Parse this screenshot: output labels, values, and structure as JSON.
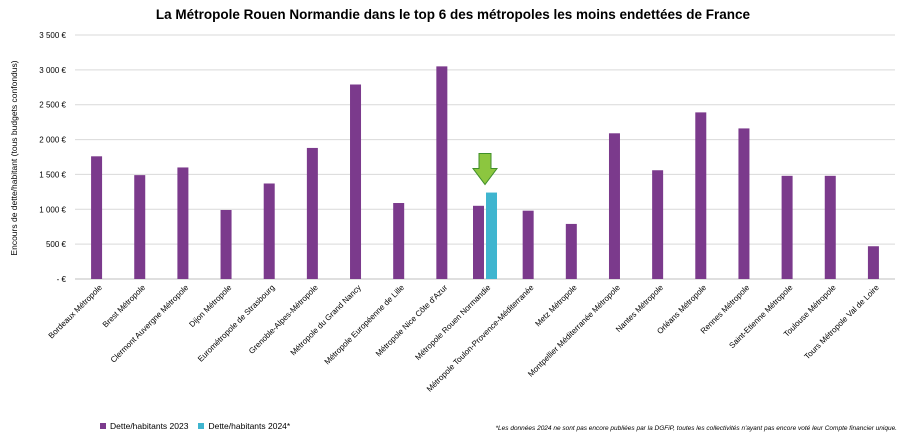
{
  "chart_data": {
    "type": "bar",
    "title": "La Métropole Rouen Normandie dans le top 6 des métropoles les moins endettées de France",
    "ylabel": "Encours de dette/habitant (tous budgets confondus)",
    "xlabel": "",
    "ylim": [
      0,
      3500
    ],
    "yticks": [
      0,
      500,
      1000,
      1500,
      2000,
      2500,
      3000,
      3500
    ],
    "ytick_labels": [
      "- €",
      "500 €",
      "1 000 €",
      "1 500 €",
      "2 000 €",
      "2 500 €",
      "3 000 €",
      "3 500 €"
    ],
    "grid": true,
    "legend_position": "bottom-left",
    "categories": [
      "Bordeaux Métropole",
      "Brest Métropole",
      "Clermont Auvergne Métropole",
      "Dijon Métropole",
      "Eurométropole de Strasbourg",
      "Grenoble-Alpes-Métropole",
      "Métropole du Grand Nancy",
      "Métropole Européenne de Lille",
      "Métropole Nice Côte d'Azur",
      "Métropole Rouen Normandie",
      "Métropole Toulon-Provence-Méditerranée",
      "Metz Métropole",
      "Montpellier Méditerranée Métropole",
      "Nantes Métropole",
      "Orléans Métropole",
      "Rennes Métropole",
      "Saint-Etienne Métropole",
      "Toulouse Métropole",
      "Tours Métropole Val de Loire"
    ],
    "series": [
      {
        "name": "Dette/habitants 2023",
        "color": "#7b3a8c",
        "values": [
          1760,
          1490,
          1600,
          990,
          1370,
          1880,
          2790,
          1090,
          3050,
          1050,
          980,
          790,
          2090,
          1560,
          2390,
          2160,
          1480,
          1480,
          470
        ]
      },
      {
        "name": "Dette/habitants 2024*",
        "color": "#3fb5cf",
        "values": [
          null,
          null,
          null,
          null,
          null,
          null,
          null,
          null,
          null,
          1240,
          null,
          null,
          null,
          null,
          null,
          null,
          null,
          null,
          null
        ]
      }
    ],
    "annotations": [
      {
        "type": "arrow",
        "target": "Métropole Rouen Normandie",
        "color": "#8cc63f",
        "icon": "down-arrow-icon"
      }
    ],
    "footnote": "*Les données 2024 ne sont pas encore publiées par la DGFiP, toutes les collectivités n'ayant pas encore voté leur Compte financier unique."
  }
}
